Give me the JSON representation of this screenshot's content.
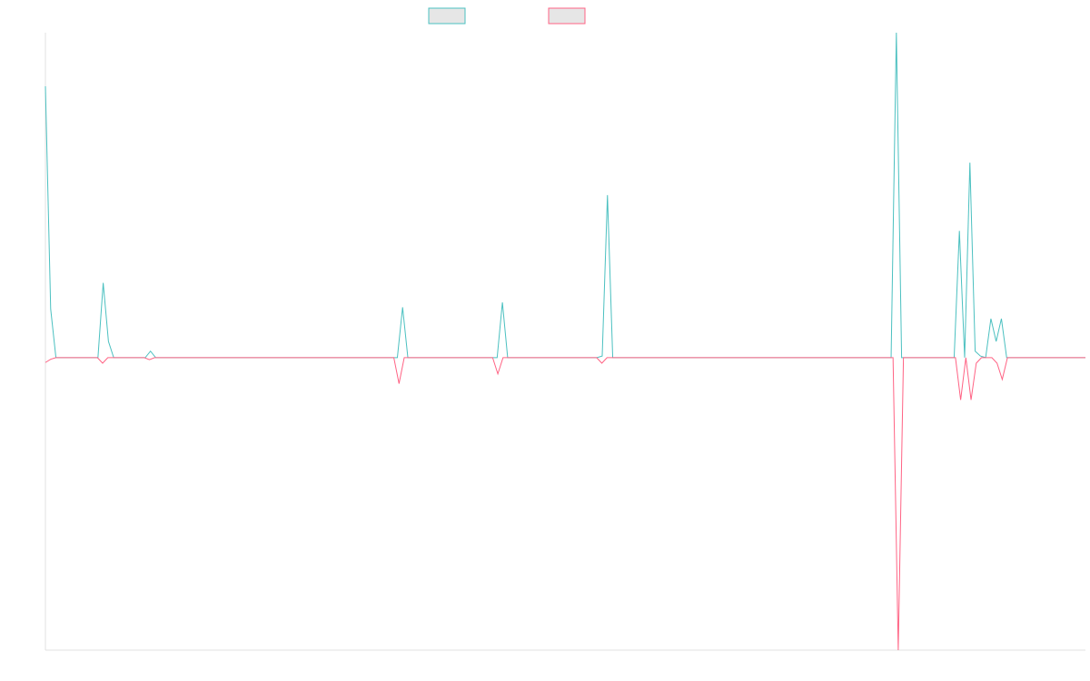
{
  "chart_data": {
    "type": "line",
    "ylim": [
      -0.9,
      1
    ],
    "series": [
      {
        "color": "#4bc0c0",
        "values": [
          0.835,
          0.15,
          0,
          0,
          0,
          0,
          0,
          0,
          0,
          0,
          0,
          0.23,
          0.05,
          0,
          0,
          0,
          0,
          0,
          0,
          0,
          0.02,
          0,
          0,
          0,
          0,
          0,
          0,
          0,
          0,
          0,
          0,
          0,
          0,
          0,
          0,
          0,
          0,
          0,
          0,
          0,
          0,
          0,
          0,
          0,
          0,
          0,
          0,
          0,
          0,
          0,
          0,
          0,
          0,
          0,
          0,
          0,
          0,
          0,
          0,
          0,
          0,
          0,
          0,
          0,
          0,
          0,
          0,
          0,
          0.155,
          0,
          0,
          0,
          0,
          0,
          0,
          0,
          0,
          0,
          0,
          0,
          0,
          0,
          0,
          0,
          0,
          0,
          0,
          0.17,
          0,
          0,
          0,
          0,
          0,
          0,
          0,
          0,
          0,
          0,
          0,
          0,
          0,
          0,
          0,
          0,
          0,
          0,
          0.005,
          0.5,
          0,
          0,
          0,
          0,
          0,
          0,
          0,
          0,
          0,
          0,
          0,
          0,
          0,
          0,
          0,
          0,
          0,
          0,
          0,
          0,
          0,
          0,
          0,
          0,
          0,
          0,
          0,
          0,
          0,
          0,
          0,
          0,
          0,
          0,
          0,
          0,
          0,
          0,
          0,
          0,
          0,
          0,
          0,
          0,
          0,
          0,
          0,
          0,
          0,
          0,
          0,
          0,
          0,
          0,
          1,
          0,
          0,
          0,
          0,
          0,
          0,
          0,
          0,
          0,
          0,
          0,
          0.39,
          0,
          0.6,
          0.02,
          0.005,
          0,
          0.12,
          0.05,
          0.12,
          0,
          0,
          0,
          0,
          0,
          0,
          0,
          0,
          0,
          0,
          0,
          0,
          0,
          0,
          0,
          0
        ]
      },
      {
        "color": "#ff6384",
        "values": [
          -0.015,
          -0.005,
          0,
          0,
          0,
          0,
          0,
          0,
          0,
          0,
          0,
          -0.017,
          0,
          0,
          0,
          0,
          0,
          0,
          0,
          0,
          -0.006,
          0,
          0,
          0,
          0,
          0,
          0,
          0,
          0,
          0,
          0,
          0,
          0,
          0,
          0,
          0,
          0,
          0,
          0,
          0,
          0,
          0,
          0,
          0,
          0,
          0,
          0,
          0,
          0,
          0,
          0,
          0,
          0,
          0,
          0,
          0,
          0,
          0,
          0,
          0,
          0,
          0,
          0,
          0,
          0,
          0,
          0,
          0,
          -0.08,
          0,
          0,
          0,
          0,
          0,
          0,
          0,
          0,
          0,
          0,
          0,
          0,
          0,
          0,
          0,
          0,
          0,
          0,
          -0.05,
          0,
          0,
          0,
          0,
          0,
          0,
          0,
          0,
          0,
          0,
          0,
          0,
          0,
          0,
          0,
          0,
          0,
          0,
          0,
          -0.017,
          0,
          0,
          0,
          0,
          0,
          0,
          0,
          0,
          0,
          0,
          0,
          0,
          0,
          0,
          0,
          0,
          0,
          0,
          0,
          0,
          0,
          0,
          0,
          0,
          0,
          0,
          0,
          0,
          0,
          0,
          0,
          0,
          0,
          0,
          0,
          0,
          0,
          0,
          0,
          0,
          0,
          0,
          0,
          0,
          0,
          0,
          0,
          0,
          0,
          0,
          0,
          0,
          0,
          0,
          0,
          0,
          -0.9,
          0,
          0,
          0,
          0,
          0,
          0,
          0,
          0,
          0,
          0,
          0,
          -0.13,
          0,
          -0.13,
          -0.017,
          0,
          0,
          0,
          -0.017,
          -0.067,
          0,
          0,
          0,
          0,
          0,
          0,
          0,
          0,
          0,
          0,
          0,
          0,
          0,
          0,
          0,
          0
        ]
      }
    ]
  }
}
